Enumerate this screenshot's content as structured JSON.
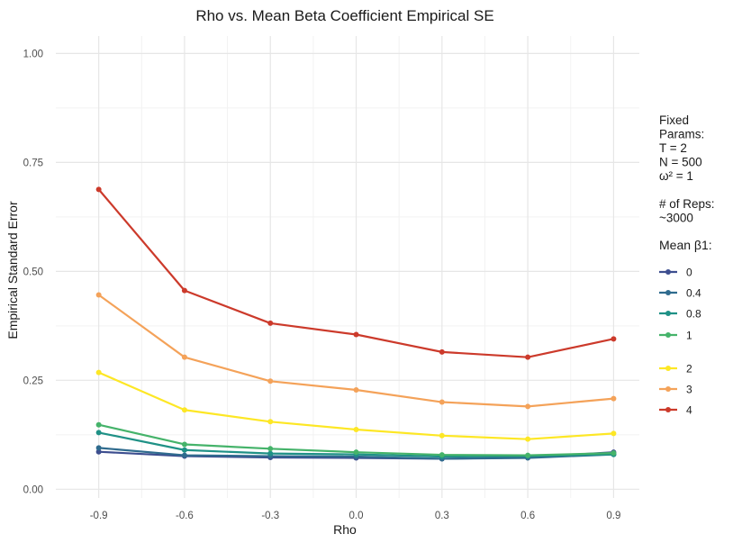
{
  "chart_data": {
    "type": "line",
    "title": "Rho vs. Mean Beta Coefficient Empirical SE",
    "xlabel": "Rho",
    "ylabel": "Empirical Standard Error",
    "x": [
      -0.9,
      -0.6,
      -0.3,
      0.0,
      0.3,
      0.6,
      0.9
    ],
    "x_tick_labels": [
      "-0.9",
      "-0.6",
      "-0.3",
      "0.0",
      "0.3",
      "0.6",
      "0.9"
    ],
    "y_ticks": [
      0.0,
      0.25,
      0.5,
      0.75,
      1.0
    ],
    "y_tick_labels": [
      "0.00",
      "0.25",
      "0.50",
      "0.75",
      "1.00"
    ],
    "xlim": [
      -1.05,
      0.99
    ],
    "ylim": [
      -0.02,
      1.04
    ],
    "grid": true,
    "legend_position": "right",
    "series": [
      {
        "name": "0",
        "color": "#3d4e8f",
        "values": [
          0.086,
          0.076,
          0.073,
          0.072,
          0.07,
          0.073,
          0.085
        ]
      },
      {
        "name": "0.4",
        "color": "#2f6b8e",
        "values": [
          0.095,
          0.078,
          0.076,
          0.075,
          0.07,
          0.072,
          0.08
        ]
      },
      {
        "name": "0.8",
        "color": "#1f9186",
        "values": [
          0.13,
          0.09,
          0.082,
          0.08,
          0.075,
          0.076,
          0.08
        ]
      },
      {
        "name": "1",
        "color": "#45b36a",
        "values": [
          0.148,
          0.103,
          0.093,
          0.085,
          0.079,
          0.078,
          0.083
        ]
      },
      {
        "name": "2",
        "color": "#fde725",
        "values": [
          0.268,
          0.182,
          0.155,
          0.137,
          0.123,
          0.115,
          0.128
        ]
      },
      {
        "name": "3",
        "color": "#f4a259",
        "values": [
          0.446,
          0.303,
          0.248,
          0.228,
          0.2,
          0.19,
          0.208
        ]
      },
      {
        "name": "4",
        "color": "#cc3a2b",
        "values": [
          0.688,
          0.456,
          0.381,
          0.355,
          0.315,
          0.303,
          0.345
        ]
      }
    ],
    "legend": {
      "header_lines": [
        "Fixed",
        "Params:",
        "T = 2",
        "N = 500",
        "ω² = 1",
        "",
        "# of Reps:",
        "~3000"
      ],
      "title": "Mean β1:"
    }
  }
}
